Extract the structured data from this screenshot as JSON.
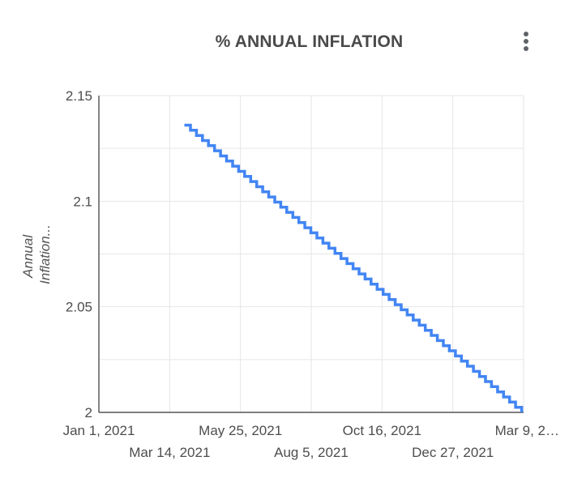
{
  "header": {
    "title": "% ANNUAL INFLATION",
    "menu_icon": "more-vert-icon"
  },
  "chart_data": {
    "type": "line",
    "title": "% ANNUAL INFLATION",
    "xlabel": "",
    "ylabel": "Annual Inflation...",
    "ylabel_lines": [
      "Annual",
      "Inflation..."
    ],
    "ylim": [
      2,
      2.15
    ],
    "y_ticks": [
      "2",
      "2.05",
      "2.1",
      "2.15"
    ],
    "x_tick_labels": [
      "Jan 1, 2021",
      "Mar 14, 2021",
      "May 25, 2021",
      "Aug 5, 2021",
      "Oct 16, 2021",
      "Dec 27, 2021",
      "Mar 9, 2…"
    ],
    "x_range": [
      "2021-01-01",
      "2022-03-09"
    ],
    "grid": true,
    "legend": "none",
    "line_color": "#4285f4",
    "series": [
      {
        "style": "step",
        "x": [
          "2021-03-29",
          "2022-03-07"
        ],
        "y": [
          2.136,
          2.0
        ]
      }
    ]
  }
}
